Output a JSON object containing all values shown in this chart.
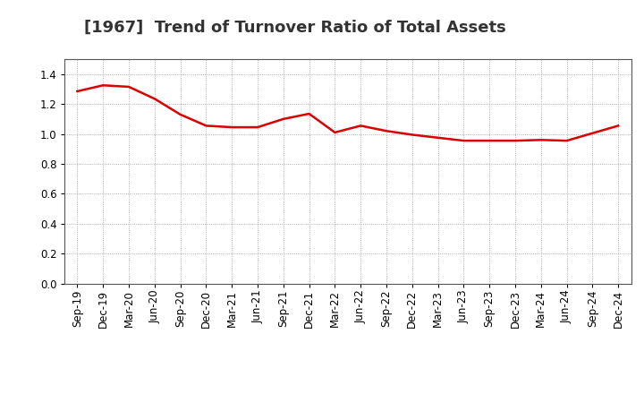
{
  "title": "[1967]  Trend of Turnover Ratio of Total Assets",
  "x_labels": [
    "Sep-19",
    "Dec-19",
    "Mar-20",
    "Jun-20",
    "Sep-20",
    "Dec-20",
    "Mar-21",
    "Jun-21",
    "Sep-21",
    "Dec-21",
    "Mar-22",
    "Jun-22",
    "Sep-22",
    "Dec-22",
    "Mar-23",
    "Jun-23",
    "Sep-23",
    "Dec-23",
    "Mar-24",
    "Jun-24",
    "Sep-24",
    "Dec-24"
  ],
  "y_values": [
    1.285,
    1.325,
    1.315,
    1.235,
    1.13,
    1.055,
    1.045,
    1.045,
    1.1,
    1.135,
    1.01,
    1.055,
    1.02,
    0.995,
    0.975,
    0.955,
    0.955,
    0.955,
    0.96,
    0.955,
    1.005,
    1.055
  ],
  "line_color": "#dd0000",
  "line_width": 1.8,
  "ylim": [
    0.0,
    1.5
  ],
  "yticks": [
    0.0,
    0.2,
    0.4,
    0.6,
    0.8,
    1.0,
    1.2,
    1.4
  ],
  "bg_color": "#ffffff",
  "grid_color": "#999999",
  "title_fontsize": 13,
  "tick_fontsize": 8.5
}
